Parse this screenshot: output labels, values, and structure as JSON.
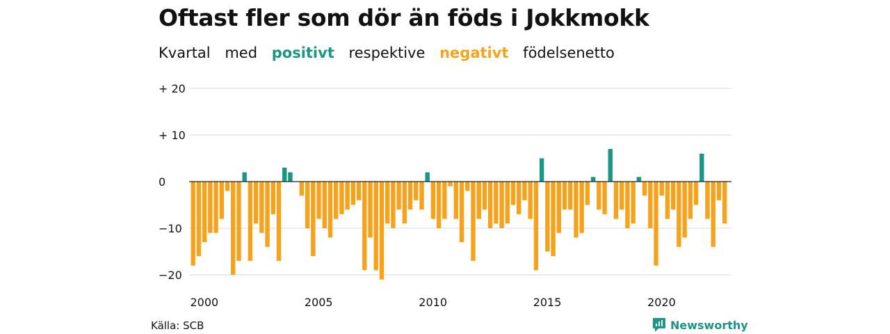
{
  "title": "Oftast fler som dör än föds i Jokkmokk",
  "subtitle": {
    "part1": "Kvartal",
    "part2": "med",
    "positive_word": "positivt",
    "part3": "respektive",
    "negative_word": "negativt",
    "part4": "födelsenetto"
  },
  "colors": {
    "positive": "#1b9584",
    "negative": "#f5a21d",
    "grid": "#d9d9d9",
    "zero_line": "#222222",
    "brand": "#1b9584"
  },
  "source": "Källa: SCB",
  "brand": {
    "name": "Newsworthy",
    "icon": "newsworthy-logo-icon"
  },
  "chart_data": {
    "type": "bar",
    "title": "Oftast fler som dör än föds i Jokkmokk",
    "subtitle": "Kvartal med positivt respektive negativt födelsenetto",
    "xlabel": "",
    "ylabel": "",
    "ylim": [
      -21,
      20
    ],
    "xlim": [
      2000,
      2023.75
    ],
    "grid": true,
    "legend": "none",
    "y_ticks": [
      {
        "value": 20,
        "label": "+ 20"
      },
      {
        "value": 10,
        "label": "+ 10"
      },
      {
        "value": 0,
        "label": "0"
      },
      {
        "value": -10,
        "label": "−10"
      },
      {
        "value": -20,
        "label": "−20"
      }
    ],
    "x_ticks": [
      {
        "value": 2000,
        "label": "2000"
      },
      {
        "value": 2005,
        "label": "2005"
      },
      {
        "value": 2010,
        "label": "2010"
      },
      {
        "value": 2015,
        "label": "2015"
      },
      {
        "value": 2020,
        "label": "2020"
      }
    ],
    "start": "2000 Q1",
    "values": [
      -18,
      -16,
      -13,
      -11,
      -11,
      -8,
      -2,
      -20,
      -17,
      2,
      -17,
      -9,
      -11,
      -14,
      -7,
      -17,
      3,
      2,
      0,
      -3,
      -10,
      -16,
      -8,
      -10,
      -12,
      -8,
      -7,
      -6,
      -5,
      -4,
      -19,
      -12,
      -19,
      -21,
      -9,
      -10,
      -6,
      -9,
      -6,
      -4,
      -6,
      2,
      -8,
      -10,
      -8,
      -1,
      -8,
      -13,
      -2,
      -17,
      -8,
      -6,
      -10,
      -9,
      -10,
      -9,
      -5,
      -7,
      -4,
      -8,
      -19,
      5,
      -15,
      -16,
      -11,
      -6,
      -6,
      -12,
      -11,
      -5,
      1,
      -6,
      -7,
      7,
      -8,
      -6,
      -10,
      -9,
      1,
      -3,
      -10,
      -18,
      -3,
      -8,
      -6,
      -14,
      -12,
      -8,
      -5,
      6,
      -8,
      -14,
      -4,
      -9
    ]
  }
}
